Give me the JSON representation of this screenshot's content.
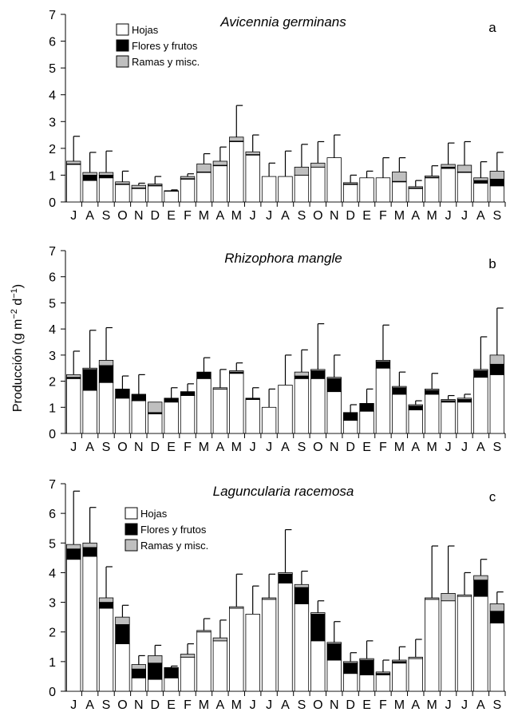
{
  "ylabel_main": "Producción (g m",
  "ylabel_exp1": "−2",
  "ylabel_mid": " d",
  "ylabel_exp2": "−1",
  "ylabel_end": ")",
  "colors": {
    "hojas": "#ffffff",
    "flores": "#000000",
    "ramas": "#bfbfbf",
    "stroke": "#000000"
  },
  "chart_data": [
    {
      "type": "bar",
      "stacked": true,
      "title": "Avicennia germinans",
      "panel": "a",
      "ylim": [
        0,
        7
      ],
      "yticks": [
        "0",
        "1",
        "2",
        "3",
        "4",
        "5",
        "6",
        "7"
      ],
      "categories": [
        "J",
        "A",
        "S",
        "O",
        "N",
        "D",
        "E",
        "F",
        "M",
        "A",
        "M",
        "J",
        "J",
        "A",
        "S",
        "O",
        "N",
        "D",
        "E",
        "F",
        "M",
        "A",
        "M",
        "J",
        "J",
        "A",
        "S"
      ],
      "legend": [
        "Hojas",
        "Flores y frutos",
        "Ramas y misc."
      ],
      "series": [
        {
          "name": "Hojas",
          "values": [
            1.4,
            0.8,
            0.9,
            0.65,
            0.5,
            0.6,
            0.4,
            0.85,
            1.1,
            1.35,
            2.25,
            1.75,
            0.95,
            0.95,
            1.0,
            1.3,
            1.65,
            0.65,
            0.9,
            0.9,
            0.75,
            0.5,
            0.9,
            1.25,
            1.1,
            0.7,
            0.6
          ]
        },
        {
          "name": "Flores y frutos",
          "values": [
            0.02,
            0.2,
            0.1,
            0.02,
            0.02,
            0.02,
            0.0,
            0.02,
            0.02,
            0.02,
            0.02,
            0.02,
            0.0,
            0.0,
            0.0,
            0.0,
            0.0,
            0.02,
            0.0,
            0.0,
            0.02,
            0.02,
            0.02,
            0.05,
            0.02,
            0.1,
            0.25
          ]
        },
        {
          "name": "Ramas y misc.",
          "values": [
            0.1,
            0.1,
            0.1,
            0.08,
            0.1,
            0.05,
            0.02,
            0.08,
            0.3,
            0.15,
            0.15,
            0.1,
            0.0,
            0.0,
            0.3,
            0.15,
            0.0,
            0.05,
            0.0,
            0.0,
            0.35,
            0.05,
            0.05,
            0.1,
            0.25,
            0.1,
            0.3
          ]
        }
      ],
      "error_tops": [
        2.45,
        1.85,
        1.9,
        1.15,
        0.7,
        0.95,
        0.45,
        1.05,
        1.8,
        2.05,
        3.6,
        2.5,
        1.45,
        1.9,
        2.15,
        2.25,
        2.5,
        1.0,
        1.15,
        1.65,
        1.65,
        0.8,
        1.35,
        2.2,
        2.25,
        1.5,
        1.85
      ]
    },
    {
      "type": "bar",
      "stacked": true,
      "title": "Rhizophora mangle",
      "panel": "b",
      "ylim": [
        0,
        7
      ],
      "yticks": [
        "0",
        "1",
        "2",
        "3",
        "4",
        "5",
        "6",
        "7"
      ],
      "categories": [
        "J",
        "A",
        "S",
        "O",
        "N",
        "D",
        "E",
        "F",
        "M",
        "A",
        "M",
        "J",
        "J",
        "A",
        "S",
        "O",
        "N",
        "D",
        "E",
        "F",
        "M",
        "A",
        "M",
        "J",
        "J",
        "A",
        "S"
      ],
      "series": [
        {
          "name": "Hojas",
          "values": [
            2.1,
            1.65,
            1.95,
            1.35,
            1.25,
            0.75,
            1.2,
            1.45,
            2.1,
            1.7,
            2.3,
            1.3,
            1.0,
            1.85,
            2.1,
            2.1,
            1.6,
            0.5,
            0.85,
            2.5,
            1.5,
            0.9,
            1.5,
            1.2,
            1.2,
            2.15,
            2.25
          ]
        },
        {
          "name": "Flores y frutos",
          "values": [
            0.05,
            0.8,
            0.65,
            0.35,
            0.25,
            0.05,
            0.15,
            0.15,
            0.25,
            0.0,
            0.05,
            0.05,
            0.0,
            0.0,
            0.1,
            0.3,
            0.5,
            0.3,
            0.3,
            0.25,
            0.25,
            0.15,
            0.15,
            0.05,
            0.1,
            0.25,
            0.4
          ]
        },
        {
          "name": "Ramas y misc.",
          "values": [
            0.1,
            0.05,
            0.2,
            0.0,
            0.0,
            0.4,
            0.0,
            0.0,
            0.0,
            0.05,
            0.05,
            0.0,
            0.0,
            0.0,
            0.15,
            0.05,
            0.05,
            0.0,
            0.0,
            0.05,
            0.05,
            0.05,
            0.05,
            0.05,
            0.05,
            0.05,
            0.35
          ]
        }
      ],
      "error_tops": [
        3.15,
        3.95,
        4.05,
        2.2,
        2.25,
        1.2,
        1.75,
        1.9,
        2.9,
        2.45,
        2.7,
        1.75,
        1.7,
        3.0,
        3.2,
        4.2,
        3.0,
        1.1,
        1.7,
        4.15,
        2.35,
        1.25,
        2.3,
        1.45,
        1.5,
        3.7,
        4.8
      ]
    },
    {
      "type": "bar",
      "stacked": true,
      "title": "Laguncularia racemosa",
      "panel": "c",
      "ylim": [
        0,
        7
      ],
      "yticks": [
        "0",
        "1",
        "2",
        "3",
        "4",
        "5",
        "6",
        "7"
      ],
      "categories": [
        "J",
        "A",
        "S",
        "O",
        "N",
        "D",
        "E",
        "F",
        "M",
        "A",
        "M",
        "J",
        "J",
        "A",
        "S",
        "O",
        "N",
        "D",
        "E",
        "F",
        "M",
        "A",
        "M",
        "J",
        "J",
        "A",
        "S"
      ],
      "legend": [
        "Hojas",
        "Flores y frutos",
        "Ramas y misc."
      ],
      "series": [
        {
          "name": "Hojas",
          "values": [
            4.45,
            4.55,
            2.8,
            1.6,
            0.45,
            0.4,
            0.45,
            1.15,
            2.0,
            1.7,
            2.8,
            2.6,
            3.1,
            3.65,
            2.95,
            1.7,
            1.05,
            0.6,
            0.55,
            0.55,
            0.95,
            1.1,
            3.1,
            3.05,
            3.2,
            3.2,
            2.3
          ]
        },
        {
          "name": "Flores y frutos",
          "values": [
            0.35,
            0.3,
            0.2,
            0.65,
            0.3,
            0.55,
            0.35,
            0.0,
            0.0,
            0.0,
            0.0,
            0.0,
            0.0,
            0.3,
            0.55,
            0.9,
            0.55,
            0.35,
            0.5,
            0.05,
            0.05,
            0.0,
            0.0,
            0.0,
            0.0,
            0.55,
            0.4
          ]
        },
        {
          "name": "Ramas y misc.",
          "values": [
            0.15,
            0.15,
            0.15,
            0.25,
            0.15,
            0.25,
            0.0,
            0.1,
            0.05,
            0.1,
            0.05,
            0.0,
            0.05,
            0.05,
            0.1,
            0.05,
            0.05,
            0.05,
            0.05,
            0.05,
            0.05,
            0.05,
            0.05,
            0.25,
            0.05,
            0.15,
            0.25
          ]
        }
      ],
      "error_tops": [
        6.75,
        6.2,
        4.2,
        2.9,
        1.2,
        1.55,
        0.85,
        1.6,
        2.45,
        2.4,
        3.95,
        3.55,
        3.95,
        5.45,
        4.05,
        3.05,
        2.35,
        1.3,
        1.7,
        1.05,
        1.5,
        1.75,
        4.9,
        4.9,
        4.0,
        4.45,
        3.35
      ]
    }
  ]
}
